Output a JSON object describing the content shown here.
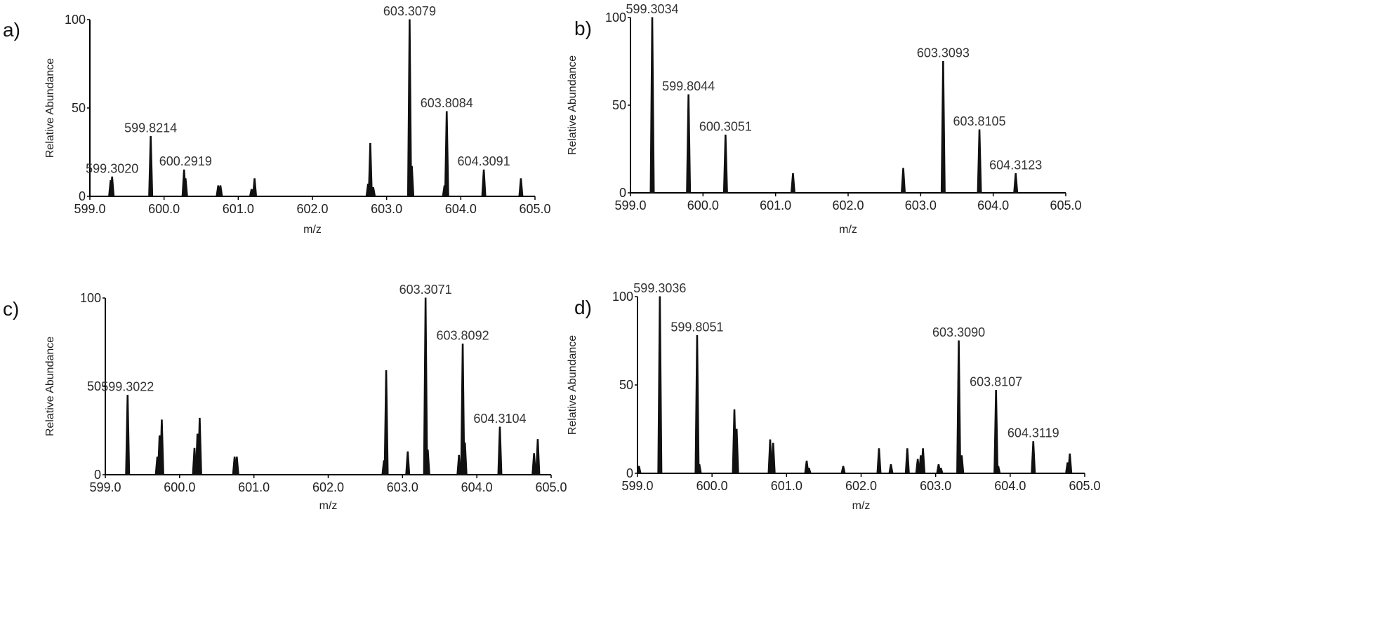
{
  "chart_data": [
    {
      "type": "bar",
      "panel_label": "a)",
      "xlabel": "m/z",
      "ylabel": "Relative Abundance",
      "xlim": [
        599.0,
        605.0
      ],
      "ylim": [
        0,
        100
      ],
      "xticks": [
        "599.0",
        "600.0",
        "601.0",
        "602.0",
        "603.0",
        "604.0",
        "605.0"
      ],
      "yticks": [
        "0",
        "50",
        "100"
      ],
      "peaks": [
        [
          599.28,
          9
        ],
        [
          599.3,
          11
        ],
        [
          599.82,
          34
        ],
        [
          600.27,
          15
        ],
        [
          600.29,
          10
        ],
        [
          600.73,
          6
        ],
        [
          600.76,
          6
        ],
        [
          601.18,
          4
        ],
        [
          601.22,
          10
        ],
        [
          602.75,
          7
        ],
        [
          602.78,
          30
        ],
        [
          602.82,
          5
        ],
        [
          603.31,
          100
        ],
        [
          603.34,
          17
        ],
        [
          603.78,
          6
        ],
        [
          603.81,
          48
        ],
        [
          604.31,
          15
        ],
        [
          604.81,
          10
        ]
      ],
      "annotations": [
        {
          "text": "599.3020",
          "x": 599.3,
          "y": 11
        },
        {
          "text": "599.8214",
          "x": 599.82,
          "y": 34
        },
        {
          "text": "600.2919",
          "x": 600.29,
          "y": 15
        },
        {
          "text": "603.3079",
          "x": 603.31,
          "y": 100
        },
        {
          "text": "603.8084",
          "x": 603.81,
          "y": 48
        },
        {
          "text": "604.3091",
          "x": 604.31,
          "y": 15
        }
      ]
    },
    {
      "type": "bar",
      "panel_label": "b)",
      "xlabel": "m/z",
      "ylabel": "Relative Abundance",
      "xlim": [
        599.0,
        605.0
      ],
      "ylim": [
        0,
        100
      ],
      "xticks": [
        "599.0",
        "600.0",
        "601.0",
        "602.0",
        "603.0",
        "604.0",
        "605.0"
      ],
      "yticks": [
        "0",
        "50",
        "100"
      ],
      "peaks": [
        [
          599.3,
          100
        ],
        [
          599.8,
          56
        ],
        [
          600.31,
          33
        ],
        [
          601.24,
          11
        ],
        [
          602.76,
          14
        ],
        [
          603.31,
          75
        ],
        [
          603.81,
          36
        ],
        [
          604.31,
          11
        ]
      ],
      "annotations": [
        {
          "text": "599.3034",
          "x": 599.3,
          "y": 100
        },
        {
          "text": "599.8044",
          "x": 599.8,
          "y": 56
        },
        {
          "text": "600.3051",
          "x": 600.31,
          "y": 33
        },
        {
          "text": "603.3093",
          "x": 603.31,
          "y": 75
        },
        {
          "text": "603.8105",
          "x": 603.81,
          "y": 36
        },
        {
          "text": "604.3123",
          "x": 604.31,
          "y": 11
        }
      ]
    },
    {
      "type": "bar",
      "panel_label": "c)",
      "xlabel": "m/z",
      "ylabel": "Relative Abundance",
      "xlim": [
        599.0,
        605.0
      ],
      "ylim": [
        0,
        100
      ],
      "xticks": [
        "599.0",
        "600.0",
        "601.0",
        "602.0",
        "603.0",
        "604.0",
        "605.0"
      ],
      "yticks": [
        "0",
        "50",
        "100"
      ],
      "peaks": [
        [
          599.3,
          45
        ],
        [
          599.7,
          10
        ],
        [
          599.73,
          22
        ],
        [
          599.76,
          31
        ],
        [
          600.2,
          15
        ],
        [
          600.24,
          23
        ],
        [
          600.27,
          32
        ],
        [
          600.74,
          10
        ],
        [
          600.77,
          10
        ],
        [
          602.75,
          8
        ],
        [
          602.78,
          59
        ],
        [
          603.07,
          13
        ],
        [
          603.31,
          100
        ],
        [
          603.34,
          14
        ],
        [
          603.76,
          11
        ],
        [
          603.81,
          74
        ],
        [
          603.84,
          18
        ],
        [
          604.31,
          27
        ],
        [
          604.77,
          12
        ],
        [
          604.82,
          20
        ]
      ],
      "annotations": [
        {
          "text": "599.3022",
          "x": 599.3,
          "y": 45
        },
        {
          "text": "603.3071",
          "x": 603.31,
          "y": 100
        },
        {
          "text": "603.8092",
          "x": 603.81,
          "y": 74
        },
        {
          "text": "604.3104",
          "x": 604.31,
          "y": 27
        }
      ]
    },
    {
      "type": "bar",
      "panel_label": "d)",
      "xlabel": "m/z",
      "ylabel": "Relative Abundance",
      "xlim": [
        599.0,
        605.0
      ],
      "ylim": [
        0,
        100
      ],
      "xticks": [
        "599.0",
        "600.0",
        "601.0",
        "602.0",
        "603.0",
        "604.0",
        "605.0"
      ],
      "yticks": [
        "0",
        "50",
        "100"
      ],
      "peaks": [
        [
          599.02,
          4
        ],
        [
          599.3,
          100
        ],
        [
          599.8,
          78
        ],
        [
          599.83,
          5
        ],
        [
          600.3,
          36
        ],
        [
          600.33,
          25
        ],
        [
          600.78,
          19
        ],
        [
          600.82,
          17
        ],
        [
          601.27,
          7
        ],
        [
          601.3,
          3
        ],
        [
          601.76,
          4
        ],
        [
          602.24,
          14
        ],
        [
          602.4,
          5
        ],
        [
          602.62,
          14
        ],
        [
          602.76,
          8
        ],
        [
          602.8,
          10
        ],
        [
          602.83,
          14
        ],
        [
          603.04,
          5
        ],
        [
          603.07,
          3
        ],
        [
          603.31,
          75
        ],
        [
          603.35,
          10
        ],
        [
          603.81,
          47
        ],
        [
          603.84,
          4
        ],
        [
          604.31,
          18
        ],
        [
          604.77,
          6
        ],
        [
          604.8,
          11
        ]
      ],
      "annotations": [
        {
          "text": "599.3036",
          "x": 599.3,
          "y": 100
        },
        {
          "text": "599.8051",
          "x": 599.8,
          "y": 78
        },
        {
          "text": "603.3090",
          "x": 603.31,
          "y": 75
        },
        {
          "text": "603.8107",
          "x": 603.81,
          "y": 47
        },
        {
          "text": "604.3119",
          "x": 604.31,
          "y": 18
        }
      ]
    }
  ]
}
